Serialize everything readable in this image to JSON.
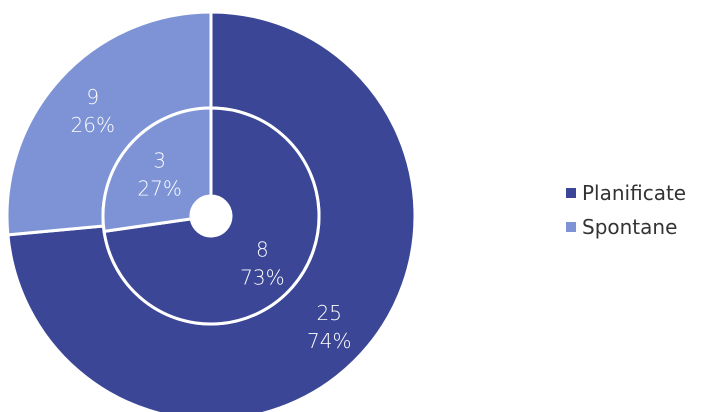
{
  "chart_data": {
    "type": "pie",
    "variant": "nested-donut",
    "title": "",
    "legend_position": "right",
    "categories": [
      "Planificate",
      "Spontane"
    ],
    "colors": [
      "#3B4796",
      "#7D93D5"
    ],
    "series": [
      {
        "ring": "inner",
        "values": [
          8,
          3
        ],
        "percent_labels": [
          "73%",
          "27%"
        ],
        "value_labels": [
          "8",
          "3"
        ]
      },
      {
        "ring": "outer",
        "values": [
          25,
          9
        ],
        "percent_labels": [
          "74%",
          "26%"
        ],
        "value_labels": [
          "25",
          "9"
        ]
      }
    ]
  },
  "legend": {
    "items": [
      {
        "label": "Planificate",
        "color": "#3B4796"
      },
      {
        "label": "Spontane",
        "color": "#7D93D5"
      }
    ]
  }
}
